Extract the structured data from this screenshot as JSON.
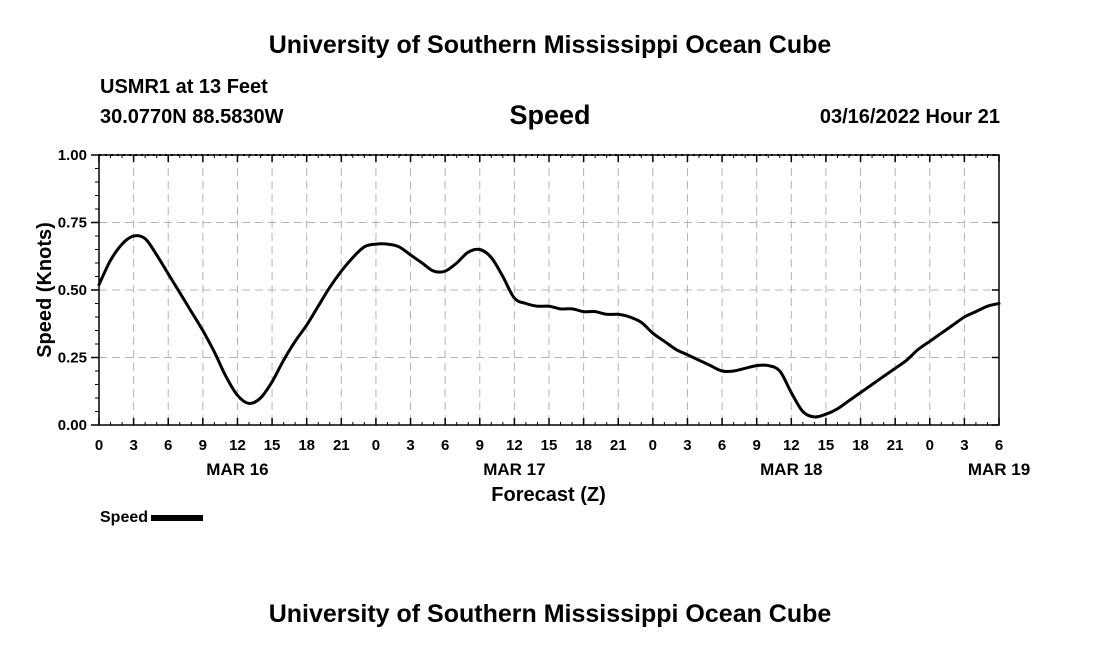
{
  "header": {
    "title_top": "University of Southern Mississippi Ocean Cube",
    "title_bottom": "University of Southern Mississippi Ocean Cube",
    "station": "USMR1 at 13 Feet",
    "coords": "30.0770N  88.5830W",
    "stamp": "03/16/2022 Hour 21"
  },
  "colors": {
    "line": "#000000",
    "grid": "#b4b4b4",
    "background": "#ffffff"
  },
  "chart_data": {
    "type": "line",
    "title": "Speed",
    "xlabel": "Forecast (Z)",
    "ylabel": "Speed (Knots)",
    "ylim": [
      0,
      1
    ],
    "xlim": [
      0,
      78
    ],
    "y_ticks": [
      0,
      0.25,
      0.5,
      0.75,
      1.0
    ],
    "y_tick_labels": [
      "0.00",
      "0.25",
      "0.50",
      "0.75",
      "1.00"
    ],
    "x_tick_labels": [
      "0",
      "3",
      "6",
      "9",
      "12",
      "15",
      "18",
      "21",
      "0",
      "3",
      "6",
      "9",
      "12",
      "15",
      "18",
      "21",
      "0",
      "3",
      "6",
      "9",
      "12",
      "15",
      "18",
      "21",
      "0",
      "3",
      "6"
    ],
    "date_labels": [
      {
        "hour_offset": 12,
        "label": "MAR 16"
      },
      {
        "hour_offset": 36,
        "label": "MAR 17"
      },
      {
        "hour_offset": 60,
        "label": "MAR 18"
      },
      {
        "hour_offset": 78,
        "label": "MAR 19"
      }
    ],
    "grid": true,
    "legend_position": "bottom-left",
    "series": [
      {
        "name": "Speed",
        "x": [
          0,
          1,
          2,
          3,
          4,
          5,
          6,
          7,
          8,
          9,
          10,
          11,
          12,
          13,
          14,
          15,
          16,
          17,
          18,
          19,
          20,
          21,
          22,
          23,
          24,
          25,
          26,
          27,
          28,
          29,
          30,
          31,
          32,
          33,
          34,
          35,
          36,
          37,
          38,
          39,
          40,
          41,
          42,
          43,
          44,
          45,
          46,
          47,
          48,
          49,
          50,
          51,
          52,
          53,
          54,
          55,
          56,
          57,
          58,
          59,
          60,
          61,
          62,
          63,
          64,
          65,
          66,
          67,
          68,
          69,
          70,
          71,
          72,
          73,
          74,
          75,
          76,
          77,
          78
        ],
        "values": [
          0.52,
          0.61,
          0.67,
          0.7,
          0.69,
          0.63,
          0.56,
          0.49,
          0.42,
          0.35,
          0.27,
          0.18,
          0.11,
          0.08,
          0.1,
          0.16,
          0.24,
          0.31,
          0.37,
          0.44,
          0.51,
          0.57,
          0.62,
          0.66,
          0.67,
          0.67,
          0.66,
          0.63,
          0.6,
          0.57,
          0.57,
          0.6,
          0.64,
          0.65,
          0.62,
          0.55,
          0.47,
          0.45,
          0.44,
          0.44,
          0.43,
          0.43,
          0.42,
          0.42,
          0.41,
          0.41,
          0.4,
          0.38,
          0.34,
          0.31,
          0.28,
          0.26,
          0.24,
          0.22,
          0.2,
          0.2,
          0.21,
          0.22,
          0.22,
          0.2,
          0.12,
          0.05,
          0.03,
          0.04,
          0.06,
          0.09,
          0.12,
          0.15,
          0.18,
          0.21,
          0.24,
          0.28,
          0.31,
          0.34,
          0.37,
          0.4,
          0.42,
          0.44,
          0.45
        ]
      }
    ]
  }
}
